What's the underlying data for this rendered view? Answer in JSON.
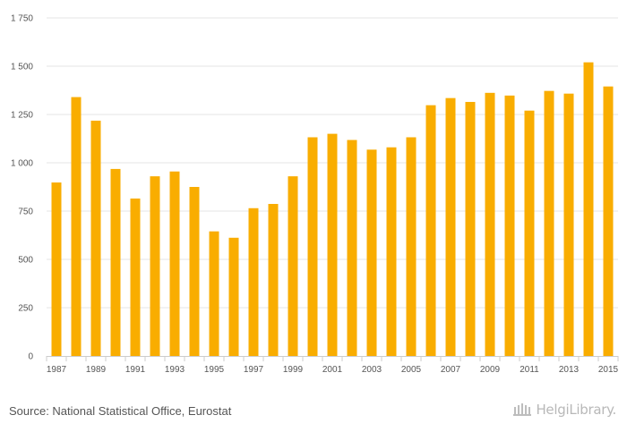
{
  "chart_data": {
    "type": "bar",
    "categories": [
      "1987",
      "1988",
      "1989",
      "1990",
      "1991",
      "1992",
      "1993",
      "1994",
      "1995",
      "1996",
      "1997",
      "1998",
      "1999",
      "2000",
      "2001",
      "2002",
      "2003",
      "2004",
      "2005",
      "2006",
      "2007",
      "2008",
      "2009",
      "2010",
      "2011",
      "2012",
      "2013",
      "2014",
      "2015"
    ],
    "x_tick_labels": [
      "1987",
      "1989",
      "1991",
      "1993",
      "1995",
      "1997",
      "1999",
      "2001",
      "2003",
      "2005",
      "2007",
      "2009",
      "2011",
      "2013",
      "2015"
    ],
    "values": [
      898,
      1340,
      1218,
      968,
      815,
      930,
      955,
      875,
      645,
      612,
      765,
      787,
      930,
      1132,
      1150,
      1118,
      1068,
      1080,
      1132,
      1298,
      1335,
      1315,
      1362,
      1348,
      1270,
      1372,
      1358,
      1520,
      1395
    ],
    "y_ticks": [
      0,
      250,
      500,
      750,
      1000,
      1250,
      1500,
      1750
    ],
    "y_tick_labels": [
      "0",
      "250",
      "500",
      "750",
      "1 000",
      "1 250",
      "1 500",
      "1 750"
    ],
    "ylim": [
      0,
      1750
    ],
    "title": "",
    "xlabel": "",
    "ylabel": "",
    "grid": true,
    "bar_color": "#f9ad00",
    "grid_color": "#e6e6e6",
    "axis_color": "#cccccc"
  },
  "footer": {
    "source": "Source: National Statistical Office, Eurostat",
    "brand": "HelgiLibrary.",
    "brand_icon": "helgi-building-icon"
  }
}
